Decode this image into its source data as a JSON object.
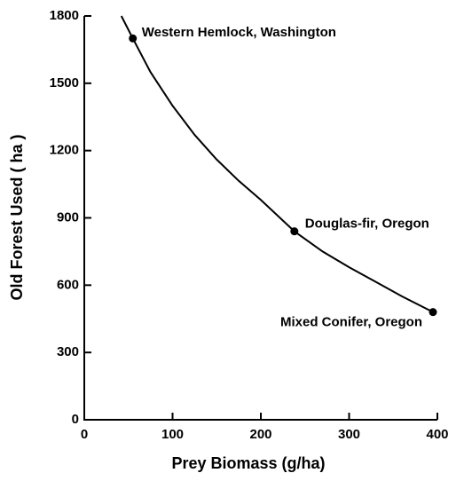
{
  "chart_data": {
    "type": "scatter",
    "x_label": "Prey Biomass (g/ha)",
    "y_label": "Old Forest Used ( ha )",
    "points": {
      "x": [
        55,
        238,
        395
      ],
      "values": [
        1700,
        840,
        480
      ],
      "labels": [
        "Western Hemlock, Washington",
        "Douglas-fir, Oregon",
        "Mixed Conifer, Oregon"
      ]
    },
    "curve": {
      "x": [
        42,
        55,
        75,
        100,
        125,
        150,
        175,
        200,
        238,
        270,
        300,
        330,
        360,
        395
      ],
      "values": [
        1800,
        1700,
        1550,
        1400,
        1270,
        1160,
        1065,
        980,
        840,
        750,
        680,
        615,
        550,
        480
      ]
    },
    "color": "#000000",
    "xlim": [
      0,
      400
    ],
    "xticks": [
      0,
      100,
      200,
      300,
      400
    ],
    "ylim": [
      0,
      1800
    ],
    "yticks": [
      0,
      300,
      600,
      900,
      1200,
      1500,
      1800
    ]
  }
}
